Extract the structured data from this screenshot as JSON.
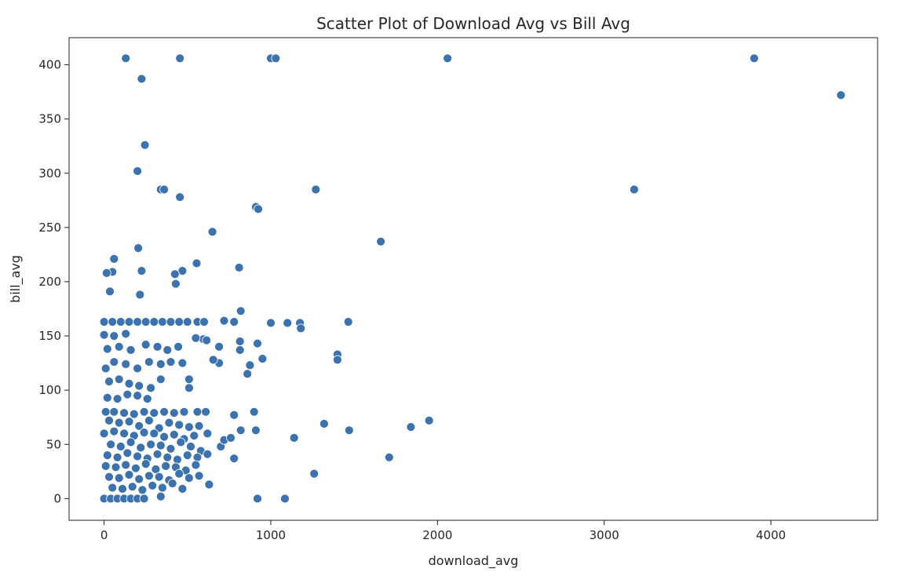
{
  "chart_data": {
    "type": "scatter",
    "title": "Scatter Plot of Download Avg vs Bill Avg",
    "xlabel": "download_avg",
    "ylabel": "bill_avg",
    "xlim": [
      -210,
      4640
    ],
    "ylim": [
      -20,
      425
    ],
    "xticks": [
      0,
      1000,
      2000,
      3000,
      4000
    ],
    "yticks": [
      0,
      50,
      100,
      150,
      200,
      250,
      300,
      350,
      400
    ],
    "grid": false,
    "legend": "none",
    "marker_color": "#3c72ad",
    "marker_edge_color": "#ffffff",
    "points": [
      [
        130,
        406
      ],
      [
        455,
        406
      ],
      [
        1000,
        406
      ],
      [
        1030,
        406
      ],
      [
        2060,
        406
      ],
      [
        3900,
        406
      ],
      [
        4420,
        372
      ],
      [
        225,
        387
      ],
      [
        245,
        326
      ],
      [
        200,
        302
      ],
      [
        340,
        285
      ],
      [
        360,
        285
      ],
      [
        455,
        278
      ],
      [
        1270,
        285
      ],
      [
        3180,
        285
      ],
      [
        910,
        269
      ],
      [
        925,
        267
      ],
      [
        650,
        246
      ],
      [
        1660,
        237
      ],
      [
        205,
        231
      ],
      [
        60,
        221
      ],
      [
        555,
        217
      ],
      [
        810,
        213
      ],
      [
        50,
        209
      ],
      [
        15,
        208
      ],
      [
        225,
        210
      ],
      [
        470,
        210
      ],
      [
        425,
        207
      ],
      [
        430,
        198
      ],
      [
        35,
        191
      ],
      [
        215,
        188
      ],
      [
        820,
        173
      ],
      [
        720,
        164
      ],
      [
        780,
        163
      ],
      [
        1000,
        162
      ],
      [
        1100,
        162
      ],
      [
        1175,
        162
      ],
      [
        1465,
        163
      ],
      [
        1180,
        157
      ],
      [
        1400,
        133
      ],
      [
        1400,
        128
      ],
      [
        950,
        129
      ],
      [
        920,
        143
      ],
      [
        815,
        145
      ],
      [
        815,
        137
      ],
      [
        875,
        123
      ],
      [
        860,
        115
      ],
      [
        690,
        140
      ],
      [
        690,
        125
      ],
      [
        655,
        128
      ],
      [
        595,
        147
      ],
      [
        615,
        146
      ],
      [
        550,
        148
      ],
      [
        510,
        110
      ],
      [
        510,
        102
      ],
      [
        445,
        140
      ],
      [
        380,
        137
      ],
      [
        0,
        163
      ],
      [
        50,
        163
      ],
      [
        100,
        163
      ],
      [
        150,
        163
      ],
      [
        200,
        163
      ],
      [
        250,
        163
      ],
      [
        300,
        163
      ],
      [
        350,
        163
      ],
      [
        400,
        163
      ],
      [
        450,
        163
      ],
      [
        500,
        163
      ],
      [
        560,
        163
      ],
      [
        600,
        163
      ],
      [
        0,
        151
      ],
      [
        60,
        150
      ],
      [
        130,
        152
      ],
      [
        20,
        138
      ],
      [
        90,
        140
      ],
      [
        160,
        137
      ],
      [
        250,
        142
      ],
      [
        320,
        140
      ],
      [
        10,
        120
      ],
      [
        60,
        126
      ],
      [
        130,
        124
      ],
      [
        200,
        120
      ],
      [
        270,
        126
      ],
      [
        340,
        124
      ],
      [
        400,
        126
      ],
      [
        470,
        125
      ],
      [
        30,
        108
      ],
      [
        90,
        110
      ],
      [
        150,
        106
      ],
      [
        210,
        104
      ],
      [
        280,
        102
      ],
      [
        340,
        110
      ],
      [
        20,
        93
      ],
      [
        80,
        92
      ],
      [
        140,
        96
      ],
      [
        200,
        95
      ],
      [
        260,
        92
      ],
      [
        10,
        80
      ],
      [
        60,
        80
      ],
      [
        120,
        79
      ],
      [
        180,
        78
      ],
      [
        240,
        80
      ],
      [
        300,
        79
      ],
      [
        360,
        80
      ],
      [
        420,
        79
      ],
      [
        480,
        80
      ],
      [
        560,
        80
      ],
      [
        610,
        80
      ],
      [
        30,
        72
      ],
      [
        90,
        70
      ],
      [
        150,
        71
      ],
      [
        210,
        67
      ],
      [
        270,
        72
      ],
      [
        330,
        65
      ],
      [
        390,
        70
      ],
      [
        450,
        68
      ],
      [
        510,
        66
      ],
      [
        570,
        67
      ],
      [
        0,
        60
      ],
      [
        60,
        62
      ],
      [
        120,
        60
      ],
      [
        180,
        58
      ],
      [
        240,
        61
      ],
      [
        300,
        60
      ],
      [
        360,
        57
      ],
      [
        420,
        59
      ],
      [
        480,
        55
      ],
      [
        540,
        58
      ],
      [
        620,
        60
      ],
      [
        40,
        50
      ],
      [
        100,
        48
      ],
      [
        160,
        52
      ],
      [
        220,
        47
      ],
      [
        280,
        50
      ],
      [
        340,
        49
      ],
      [
        400,
        46
      ],
      [
        460,
        52
      ],
      [
        520,
        48
      ],
      [
        580,
        44
      ],
      [
        20,
        40
      ],
      [
        80,
        38
      ],
      [
        140,
        42
      ],
      [
        200,
        39
      ],
      [
        260,
        37
      ],
      [
        320,
        41
      ],
      [
        380,
        38
      ],
      [
        440,
        36
      ],
      [
        500,
        40
      ],
      [
        560,
        38
      ],
      [
        620,
        41
      ],
      [
        10,
        30
      ],
      [
        70,
        29
      ],
      [
        130,
        31
      ],
      [
        190,
        28
      ],
      [
        250,
        32
      ],
      [
        310,
        27
      ],
      [
        370,
        30
      ],
      [
        430,
        29
      ],
      [
        490,
        26
      ],
      [
        550,
        31
      ],
      [
        30,
        20
      ],
      [
        90,
        19
      ],
      [
        150,
        22
      ],
      [
        210,
        18
      ],
      [
        270,
        21
      ],
      [
        330,
        20
      ],
      [
        390,
        17
      ],
      [
        450,
        23
      ],
      [
        510,
        19
      ],
      [
        570,
        21
      ],
      [
        50,
        10
      ],
      [
        110,
        9
      ],
      [
        170,
        11
      ],
      [
        230,
        8
      ],
      [
        290,
        12
      ],
      [
        350,
        10
      ],
      [
        410,
        14
      ],
      [
        470,
        9
      ],
      [
        630,
        13
      ],
      [
        0,
        0
      ],
      [
        40,
        0
      ],
      [
        80,
        0
      ],
      [
        120,
        0
      ],
      [
        160,
        0
      ],
      [
        200,
        0
      ],
      [
        240,
        0
      ],
      [
        340,
        2
      ],
      [
        920,
        0
      ],
      [
        1085,
        0
      ],
      [
        700,
        48
      ],
      [
        720,
        54
      ],
      [
        760,
        56
      ],
      [
        780,
        77
      ],
      [
        780,
        37
      ],
      [
        820,
        63
      ],
      [
        900,
        80
      ],
      [
        910,
        63
      ],
      [
        1140,
        56
      ],
      [
        1260,
        23
      ],
      [
        1320,
        69
      ],
      [
        1470,
        63
      ],
      [
        1710,
        38
      ],
      [
        1840,
        66
      ],
      [
        1950,
        72
      ]
    ]
  }
}
